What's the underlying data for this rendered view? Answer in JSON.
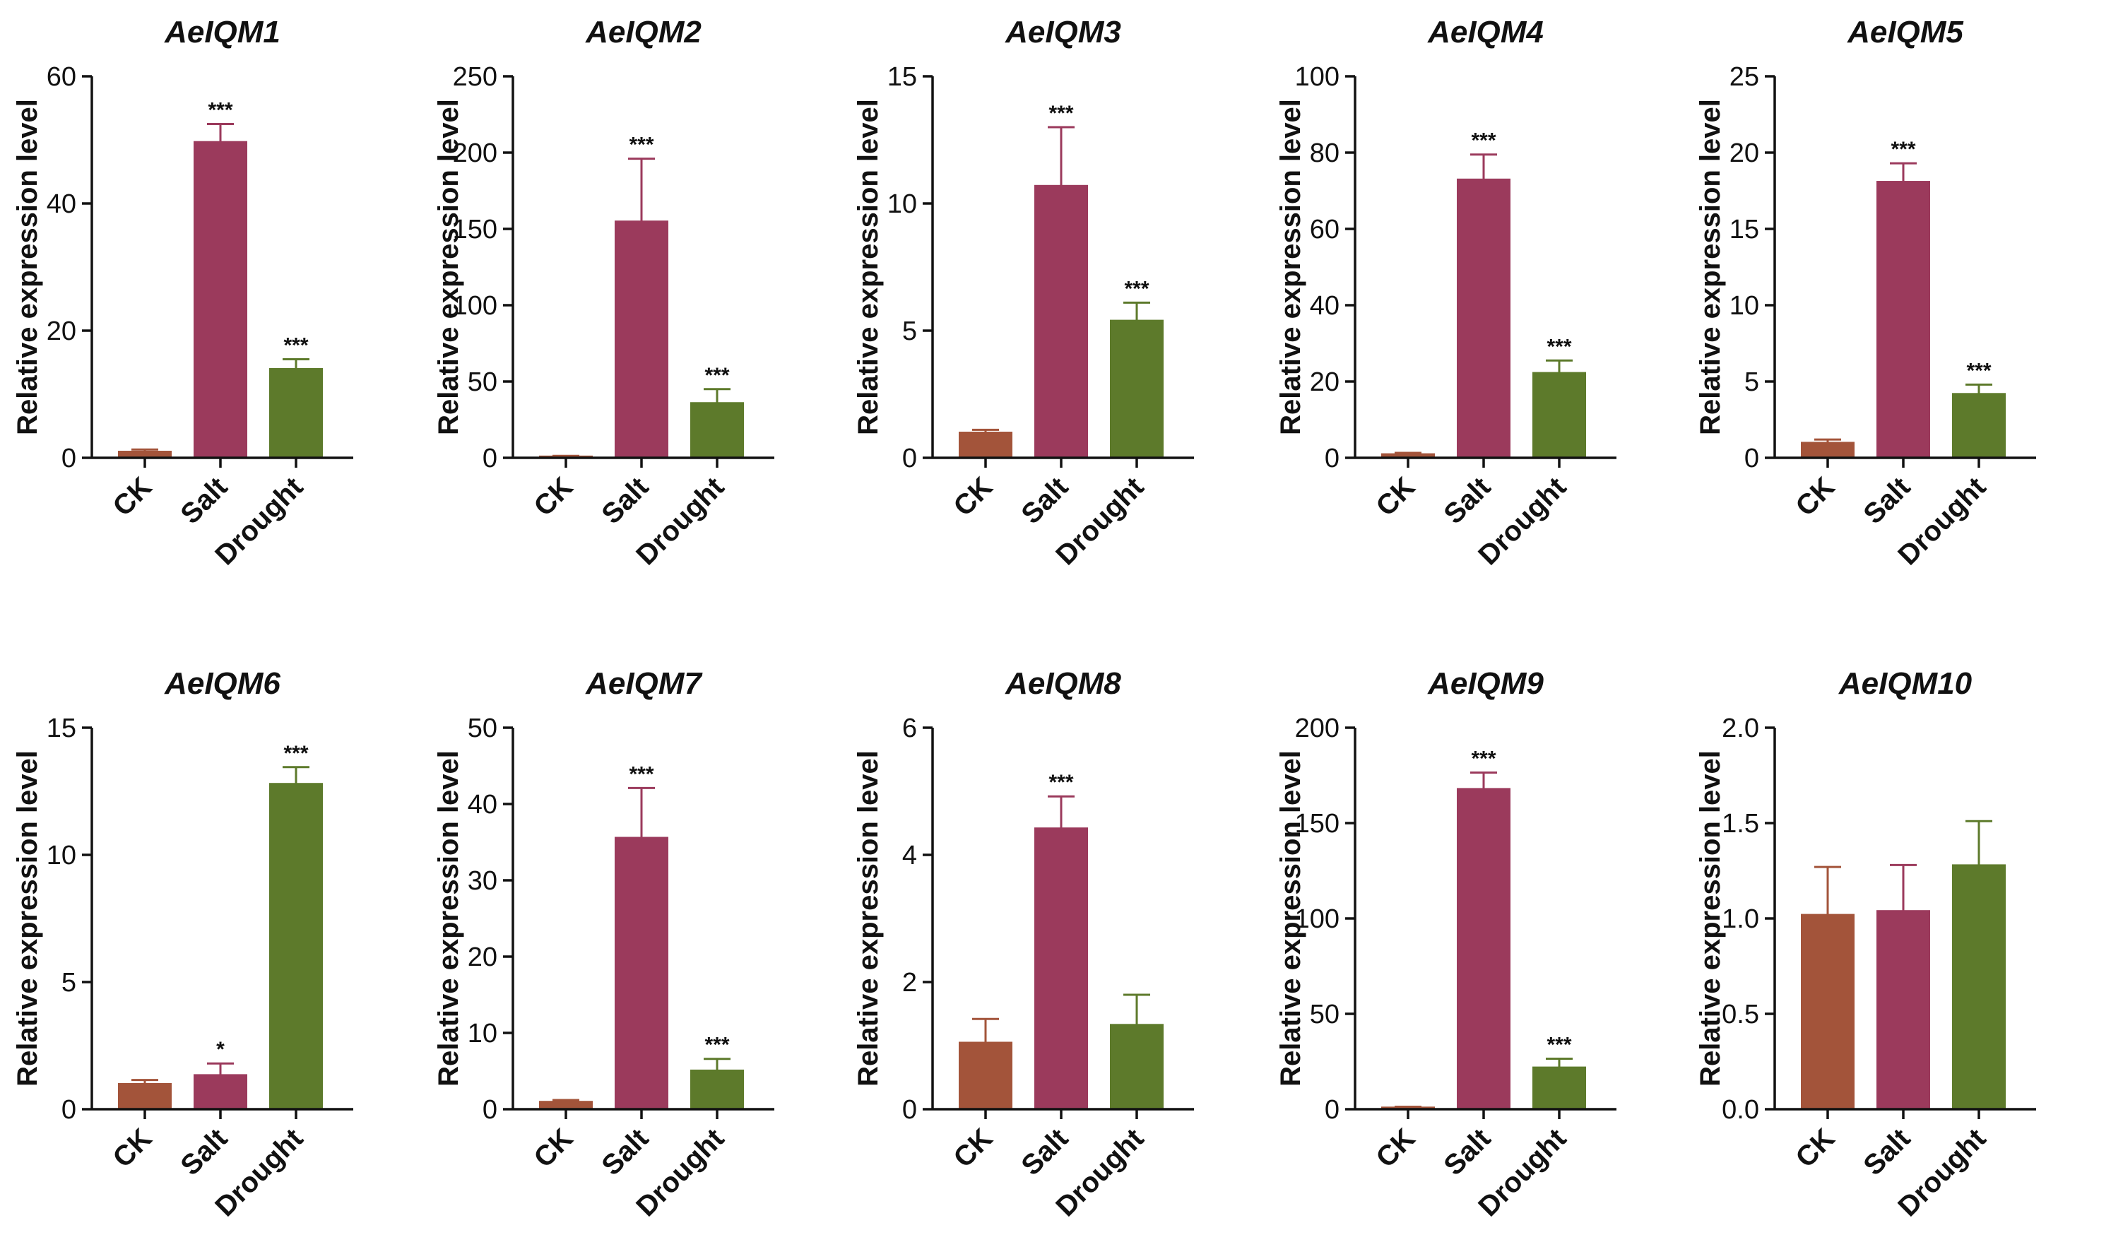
{
  "colors": {
    "CK": "#a3543a",
    "Salt": "#9b3a5c",
    "Drought": "#5d7a2b",
    "axis": "#111111"
  },
  "chart_data": [
    {
      "type": "bar",
      "title": "AeIQM1",
      "ylabel": "Relative expression level",
      "categories": [
        "CK",
        "Salt",
        "Drought"
      ],
      "values": [
        1.0,
        49.7,
        14.0
      ],
      "errors": [
        0.3,
        2.8,
        1.5
      ],
      "significance": [
        "",
        "***",
        "***"
      ],
      "ylim": [
        0,
        60
      ],
      "yticks": [
        0,
        20,
        40,
        60
      ],
      "ytick_labels": [
        "0",
        "20",
        "40",
        "60"
      ]
    },
    {
      "type": "bar",
      "title": "AeIQM2",
      "ylabel": "Relative expression level",
      "categories": [
        "CK",
        "Salt",
        "Drought"
      ],
      "values": [
        1.0,
        155,
        36
      ],
      "errors": [
        0.3,
        41,
        9
      ],
      "significance": [
        "",
        "***",
        "***"
      ],
      "ylim": [
        0,
        250
      ],
      "yticks": [
        0,
        50,
        100,
        150,
        200,
        250
      ],
      "ytick_labels": [
        "0",
        "50",
        "100",
        "150",
        "200",
        "250"
      ]
    },
    {
      "type": "bar",
      "title": "AeIQM3",
      "ylabel": "Relative expression level",
      "categories": [
        "CK",
        "Salt",
        "Drought"
      ],
      "values": [
        1.0,
        10.7,
        5.4
      ],
      "errors": [
        0.1,
        2.3,
        0.7
      ],
      "significance": [
        "",
        "***",
        "***"
      ],
      "ylim": [
        0,
        15
      ],
      "yticks": [
        0,
        5,
        10,
        15
      ],
      "ytick_labels": [
        "0",
        "5",
        "10",
        "15"
      ]
    },
    {
      "type": "bar",
      "title": "AeIQM4",
      "ylabel": "Relative expression level",
      "categories": [
        "CK",
        "Salt",
        "Drought"
      ],
      "values": [
        1.0,
        73,
        22.3
      ],
      "errors": [
        0.3,
        6.5,
        3.2
      ],
      "significance": [
        "",
        "***",
        "***"
      ],
      "ylim": [
        0,
        100
      ],
      "yticks": [
        0,
        20,
        40,
        60,
        80,
        100
      ],
      "ytick_labels": [
        "0",
        "20",
        "40",
        "60",
        "80",
        "100"
      ]
    },
    {
      "type": "bar",
      "title": "AeIQM5",
      "ylabel": "Relative expression level",
      "categories": [
        "CK",
        "Salt",
        "Drought"
      ],
      "values": [
        1.0,
        18.1,
        4.2
      ],
      "errors": [
        0.2,
        1.2,
        0.6
      ],
      "significance": [
        "",
        "***",
        "***"
      ],
      "ylim": [
        0,
        25
      ],
      "yticks": [
        0,
        5,
        10,
        15,
        20,
        25
      ],
      "ytick_labels": [
        "0",
        "5",
        "10",
        "15",
        "20",
        "25"
      ]
    },
    {
      "type": "bar",
      "title": "AeIQM6",
      "ylabel": "Relative expression level",
      "categories": [
        "CK",
        "Salt",
        "Drought"
      ],
      "values": [
        1.0,
        1.35,
        12.8
      ],
      "errors": [
        0.15,
        0.45,
        0.65
      ],
      "significance": [
        "",
        "*",
        "***"
      ],
      "ylim": [
        0,
        15
      ],
      "yticks": [
        0,
        5,
        10,
        15
      ],
      "ytick_labels": [
        "0",
        "5",
        "10",
        "15"
      ]
    },
    {
      "type": "bar",
      "title": "AeIQM7",
      "ylabel": "Relative expression level",
      "categories": [
        "CK",
        "Salt",
        "Drought"
      ],
      "values": [
        1.0,
        35.6,
        5.1
      ],
      "errors": [
        0.2,
        6.5,
        1.5
      ],
      "significance": [
        "",
        "***",
        "***"
      ],
      "ylim": [
        0,
        50
      ],
      "yticks": [
        0,
        10,
        20,
        30,
        40,
        50
      ],
      "ytick_labels": [
        "0",
        "10",
        "20",
        "30",
        "40",
        "50"
      ]
    },
    {
      "type": "bar",
      "title": "AeIQM8",
      "ylabel": "Relative expression level",
      "categories": [
        "CK",
        "Salt",
        "Drought"
      ],
      "values": [
        1.05,
        4.42,
        1.33
      ],
      "errors": [
        0.37,
        0.5,
        0.47
      ],
      "significance": [
        "",
        "***",
        ""
      ],
      "ylim": [
        0,
        6
      ],
      "yticks": [
        0,
        2,
        4,
        6
      ],
      "ytick_labels": [
        "0",
        "2",
        "4",
        "6"
      ]
    },
    {
      "type": "bar",
      "title": "AeIQM9",
      "ylabel": "Relative expression level",
      "categories": [
        "CK",
        "Salt",
        "Drought"
      ],
      "values": [
        1.0,
        168,
        22
      ],
      "errors": [
        0.3,
        8.5,
        4.5
      ],
      "significance": [
        "",
        "***",
        "***"
      ],
      "ylim": [
        0,
        200
      ],
      "yticks": [
        0,
        50,
        100,
        150,
        200
      ],
      "ytick_labels": [
        "0",
        "50",
        "100",
        "150",
        "200"
      ]
    },
    {
      "type": "bar",
      "title": "AeIQM10",
      "ylabel": "Relative expression level",
      "categories": [
        "CK",
        "Salt",
        "Drought"
      ],
      "values": [
        1.02,
        1.04,
        1.28
      ],
      "errors": [
        0.25,
        0.24,
        0.23
      ],
      "significance": [
        "",
        "",
        ""
      ],
      "ylim": [
        0,
        2.0
      ],
      "yticks": [
        0,
        0.5,
        1.0,
        1.5,
        2.0
      ],
      "ytick_labels": [
        "0.0",
        "0.5",
        "1.0",
        "1.5",
        "2.0"
      ]
    }
  ]
}
